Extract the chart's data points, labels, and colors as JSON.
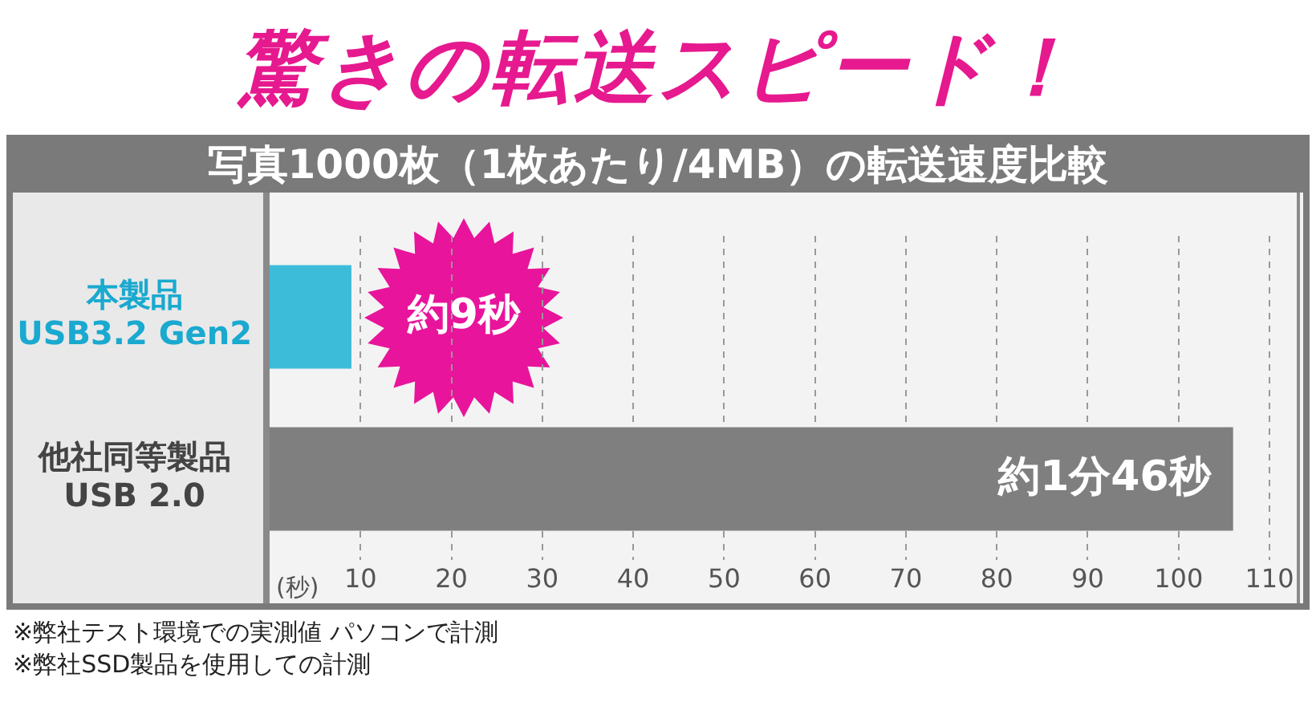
{
  "chart_data": {
    "type": "bar",
    "orientation": "horizontal",
    "title": "驚きの転送スピード！",
    "subtitle": "写真1000枚（1枚あたり/4MB）の転送速度比較",
    "xlabel": "(秒)",
    "categories": [
      "本製品\nUSB3.2 Gen2",
      "他社同等製品\nUSB 2.0"
    ],
    "values": [
      9,
      106
    ],
    "colors": [
      "#3dbcd9",
      "#7f7f7f"
    ],
    "value_labels": [
      "約9秒",
      "約1分46秒"
    ],
    "xlim": [
      0,
      113
    ],
    "xticks": [
      10,
      20,
      30,
      40,
      50,
      60,
      70,
      80,
      90,
      100,
      110
    ],
    "grid": "x",
    "legend": false,
    "annotations": [
      "※弊社テスト環境での実測値 パソコンで計測",
      "※弊社SSD製品を使用しての計測"
    ]
  }
}
